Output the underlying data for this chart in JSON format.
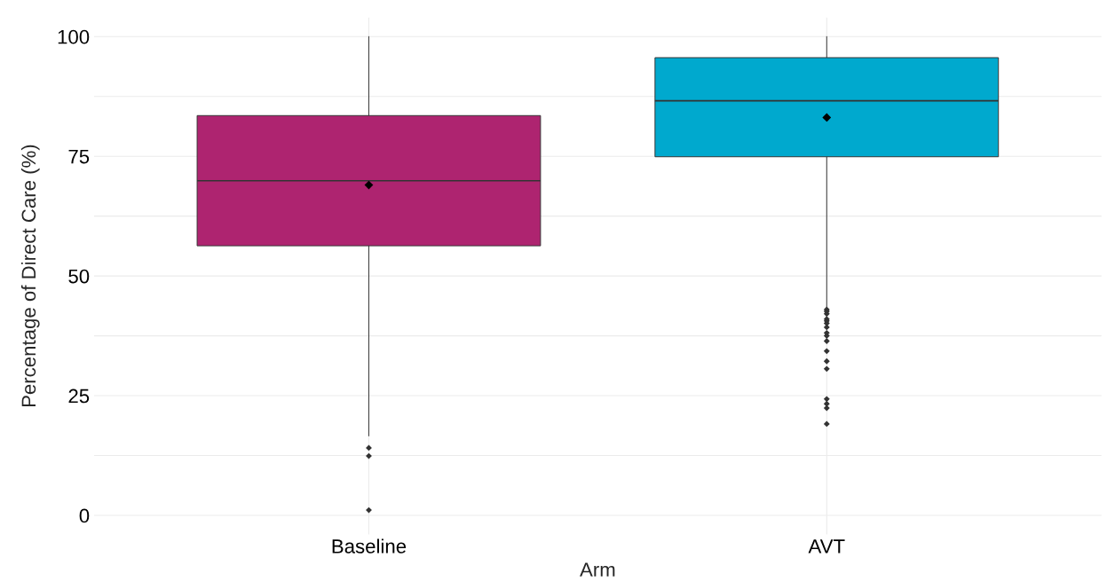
{
  "chart_data": {
    "type": "box",
    "xlabel": "Arm",
    "ylabel": "Percentage of Direct Care (%)",
    "categories": [
      "Baseline",
      "AVT"
    ],
    "colors": [
      "#ae2470",
      "#00a9ce"
    ],
    "boxes": [
      {
        "low": 16.6,
        "q1": 56.3,
        "median": 69.9,
        "q3": 83.5,
        "high": 100,
        "mean": 69.0,
        "outliers": [
          14.1,
          12.4,
          1.1
        ]
      },
      {
        "low": 43.5,
        "q1": 74.9,
        "median": 86.6,
        "q3": 95.6,
        "high": 100,
        "mean": 83.1,
        "outliers": [
          43.0,
          42.6,
          42.1,
          41.0,
          40.6,
          40.1,
          39.3,
          38.1,
          37.5,
          36.4,
          34.3,
          32.2,
          30.6,
          24.3,
          23.3,
          22.4,
          19.1
        ]
      }
    ],
    "ylim": [
      -4,
      104
    ],
    "yticks": [
      0,
      {
        "value": 12.5,
        "label": null
      },
      25,
      {
        "value": 37.5,
        "label": null
      },
      50,
      {
        "value": 62.5,
        "label": null
      },
      75,
      {
        "value": 87.5,
        "label": null
      },
      100
    ],
    "grid": true
  }
}
